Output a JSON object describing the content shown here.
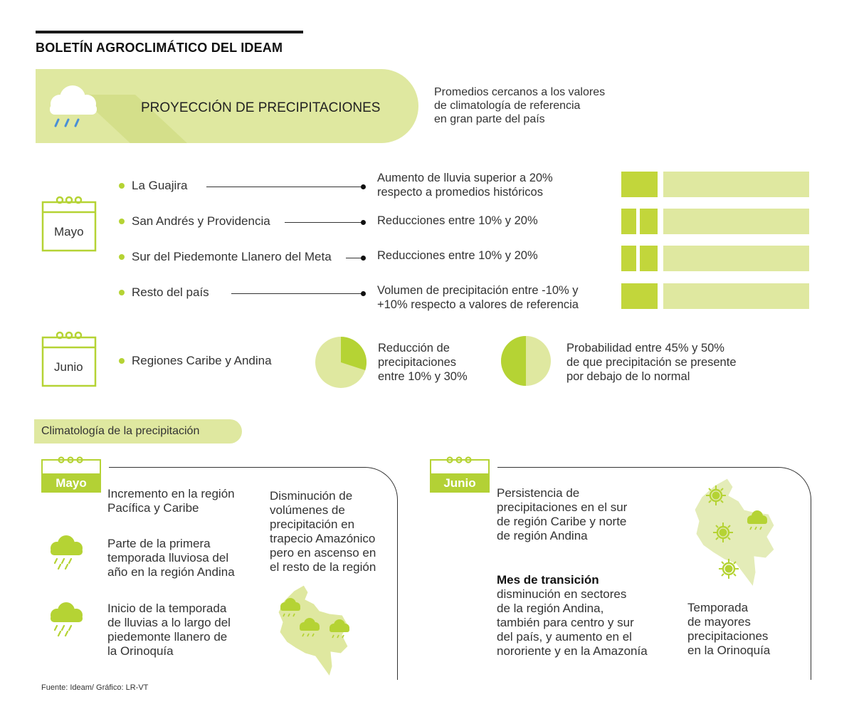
{
  "header": {
    "title": "BOLETÍN AGROCLIMÁTICO DEL IDEAM"
  },
  "banner": {
    "title": "PROYECCIÓN DE PRECIPITACIONES",
    "icon": "rain-cloud-icon",
    "intro": [
      "Promedios cercanos a los valores",
      "de climatología de referencia",
      "en gran parte del país"
    ]
  },
  "colors": {
    "accent": "#b5d334",
    "light": "#dfe8a0",
    "dark_bar": "#c2d63b"
  },
  "projections": {
    "may": {
      "label": "Mayo",
      "regions": [
        {
          "name": "La Guajira",
          "desc": [
            "Aumento de lluvia superior a 20%",
            "respecto a promedios históricos"
          ],
          "bar_segments": 1
        },
        {
          "name": "San Andrés y Providencia",
          "desc": [
            "Reducciones entre 10% y 20%"
          ],
          "bar_segments": 2
        },
        {
          "name": "Sur del Piedemonte Llanero del Meta",
          "desc": [
            "Reducciones entre 10% y 20%"
          ],
          "bar_segments": 2
        },
        {
          "name": "Resto del país",
          "desc": [
            "Volumen de precipitación entre -10% y",
            "+10% respecto a valores de referencia"
          ],
          "bar_segments": 1
        }
      ]
    },
    "june": {
      "label": "Junio",
      "region": "Regiones Caribe y Andina",
      "pie1": {
        "fraction": 0.3,
        "text": [
          "Reducción de",
          "precipitaciones",
          "entre 10% y 30%"
        ]
      },
      "pie2": {
        "fraction": 0.5,
        "text": [
          "Probabilidad entre 45% y 50%",
          "de que precipitación se presente",
          "por debajo de lo normal"
        ]
      }
    }
  },
  "climatology": {
    "title": "Climatología de la precipitación",
    "may": {
      "label": "Mayo",
      "items": [
        [
          "Incremento en la región",
          "Pacífica y Caribe"
        ],
        [
          "Parte de la primera",
          "temporada lluviosa del",
          "año en la región Andina"
        ],
        [
          "Inicio de la temporada",
          "de lluvias a lo largo del",
          "piedemonte llanero de",
          "la Orinoquía"
        ]
      ],
      "amazon": [
        "Disminución de",
        "volúmenes de",
        "precipitación en",
        "trapecio Amazónico",
        "pero en ascenso en",
        "el resto de la región"
      ]
    },
    "june": {
      "label": "Junio",
      "persist": [
        "Persistencia de",
        "precipitaciones en el sur",
        "de región Caribe y norte",
        "de región Andina"
      ],
      "transition_title": "Mes de transición",
      "transition": [
        "disminución en sectores",
        "de la región Andina,",
        "también para centro y sur",
        "del país, y aumento en el",
        "nororiente y en la Amazonía"
      ],
      "season": [
        "Temporada",
        "de mayores",
        "precipitaciones",
        "en la Orinoquía"
      ]
    }
  },
  "source": "Fuente: Ideam/ Gráfico: LR-VT"
}
